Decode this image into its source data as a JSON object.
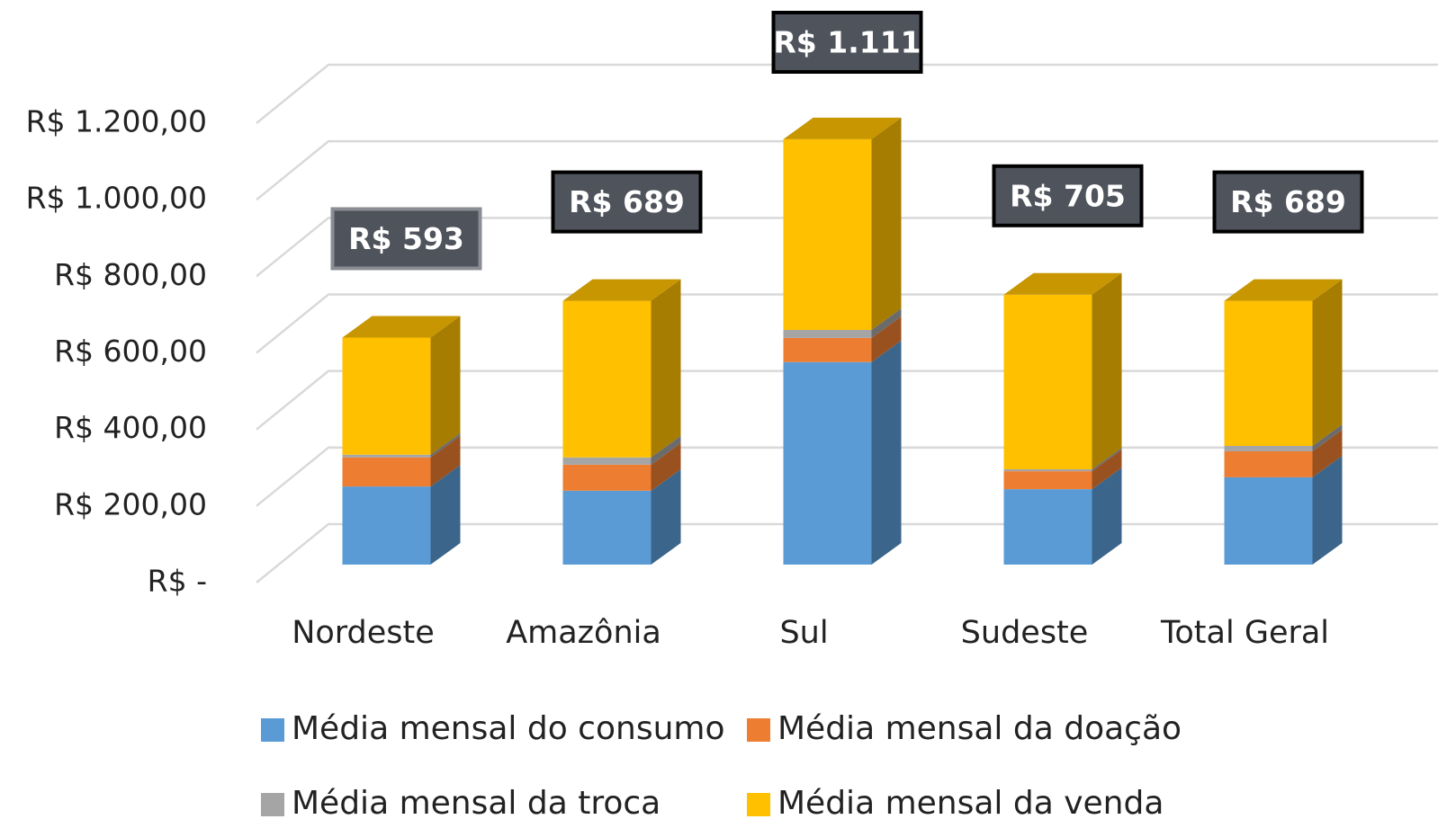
{
  "chart_data": {
    "type": "bar3d_stacked",
    "categories": [
      "Nordeste",
      "Amazônia",
      "Sul",
      "Sudeste",
      "Total Geral"
    ],
    "series": [
      {
        "name": "Média mensal do consumo",
        "color": "#5b9bd5",
        "values": [
          204,
          193,
          529,
          197,
          228
        ]
      },
      {
        "name": "Média mensal da doação",
        "color": "#ed7d31",
        "values": [
          76,
          68,
          63,
          47,
          68
        ]
      },
      {
        "name": "Média mensal da troca",
        "color": "#a5a5a5",
        "values": [
          7,
          19,
          21,
          5,
          14
        ]
      },
      {
        "name": "Média mensal da venda",
        "color": "#ffc000",
        "values": [
          306,
          409,
          498,
          456,
          379
        ]
      }
    ],
    "annotations": [
      "R$ 593",
      "R$ 689",
      "R$ 1.111",
      "R$ 705",
      "R$ 689"
    ],
    "ylim": [
      0,
      1200
    ],
    "yticks": [
      {
        "value": 0,
        "label": "R$ -"
      },
      {
        "value": 200,
        "label": "R$ 200,00"
      },
      {
        "value": 400,
        "label": "R$ 400,00"
      },
      {
        "value": 600,
        "label": "R$ 600,00"
      },
      {
        "value": 800,
        "label": "R$ 800,00"
      },
      {
        "value": 1000,
        "label": "R$ 1.000,00"
      },
      {
        "value": 1200,
        "label": "R$ 1.200,00"
      }
    ],
    "grid": true,
    "legend": "bottom"
  }
}
